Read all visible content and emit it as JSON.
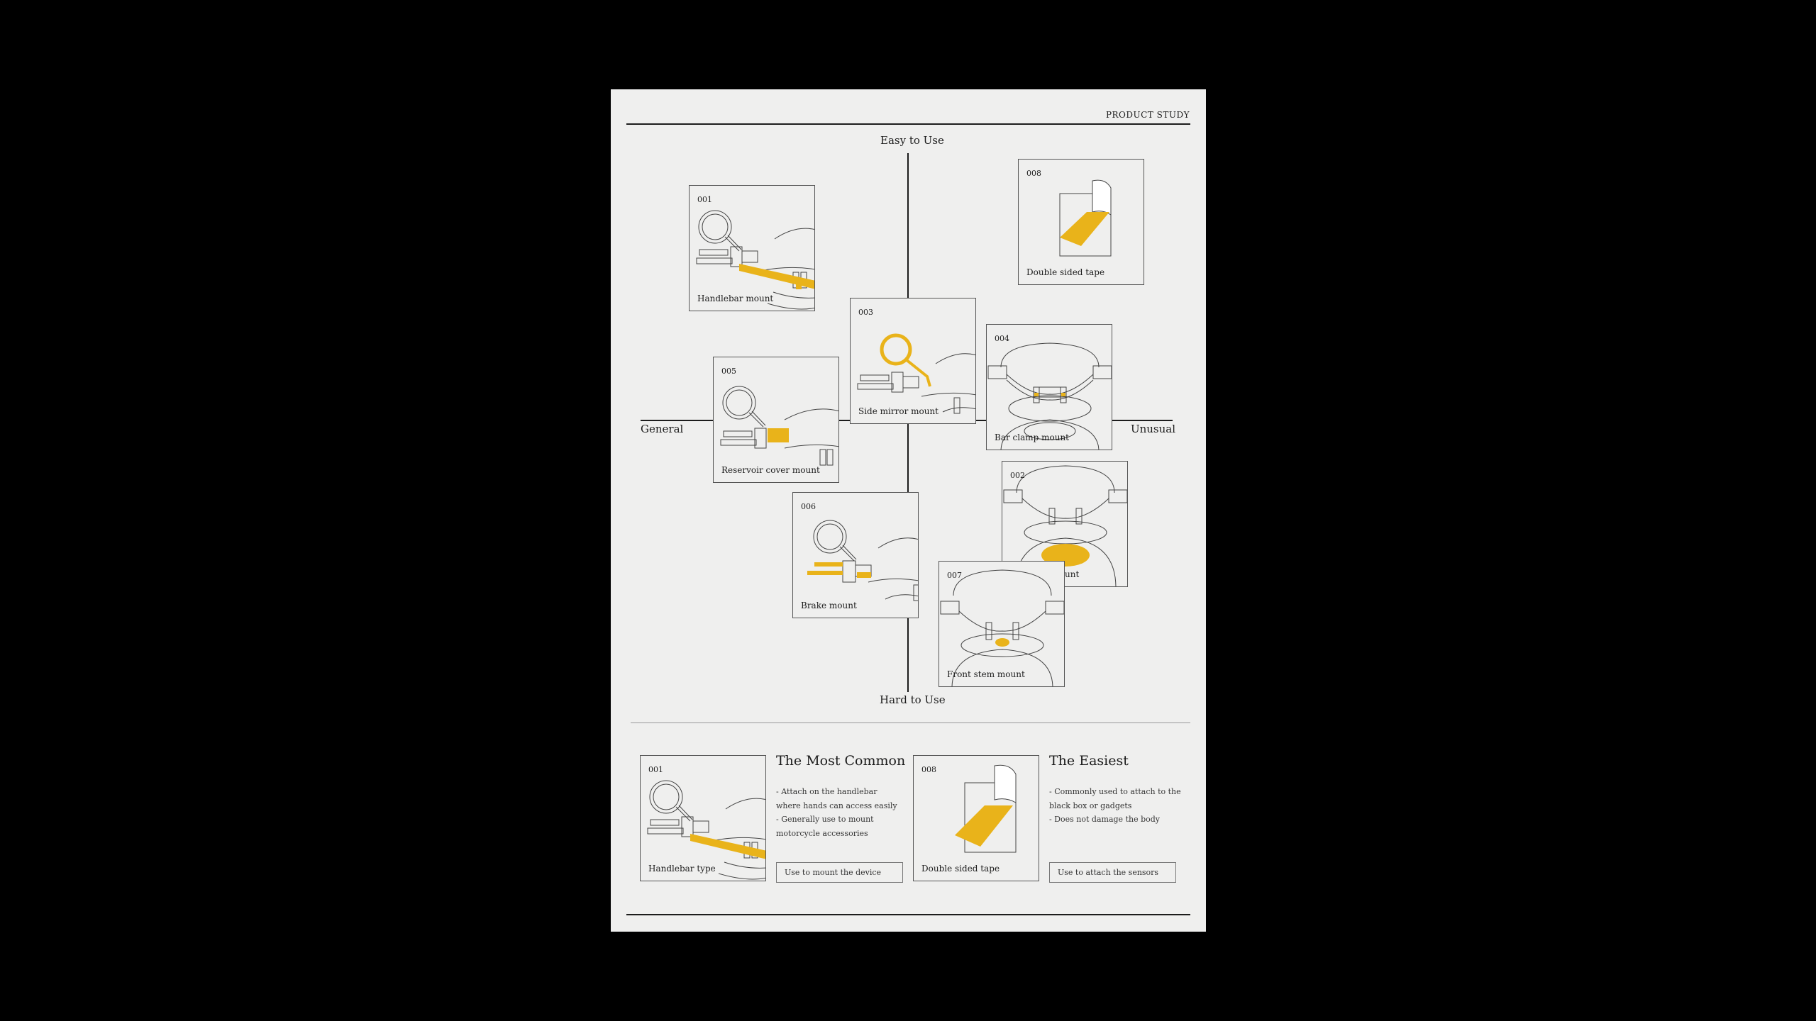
{
  "header": {
    "label": "PRODUCT STUDY"
  },
  "axes": {
    "top": "Easy to Use",
    "bottom": "Hard to Use",
    "left": "General",
    "right": "Unusual"
  },
  "colors": {
    "accent": "#e9b31a",
    "line": "#1c1c1c",
    "paper": "#efefee",
    "background": "#000000"
  },
  "mounts": [
    {
      "id": "001",
      "label": "Handlebar mount",
      "illustration": "handlebar"
    },
    {
      "id": "008",
      "label": "Double sided tape",
      "illustration": "tape"
    },
    {
      "id": "003",
      "label": "Side mirror mount",
      "illustration": "mirror"
    },
    {
      "id": "004",
      "label": "Bar clamp mount",
      "illustration": "clamp"
    },
    {
      "id": "005",
      "label": "Reservoir cover mount",
      "illustration": "reservoir"
    },
    {
      "id": "002",
      "label": "Tank cap mount",
      "illustration": "tankcap"
    },
    {
      "id": "006",
      "label": "Brake mount",
      "illustration": "brake"
    },
    {
      "id": "007",
      "label": "Front stem mount",
      "illustration": "stem"
    }
  ],
  "features": [
    {
      "id": "001",
      "card_label": "Handlebar type",
      "title": "The Most Common",
      "points": [
        "- Attach on the handlebar where hands can access easily",
        "- Generally use to mount motorcycle accessories"
      ],
      "note": "Use to mount the device"
    },
    {
      "id": "008",
      "card_label": "Double sided tape",
      "title": "The Easiest",
      "points": [
        "- Commonly used to attach to the black box or gadgets",
        "- Does not damage the body"
      ],
      "note": "Use to attach the sensors"
    }
  ]
}
